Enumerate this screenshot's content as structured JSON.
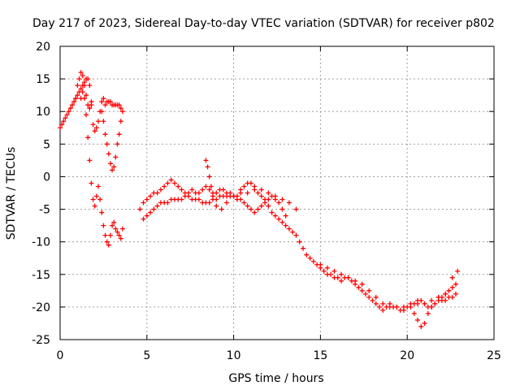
{
  "chart_data": {
    "type": "scatter",
    "title": "Day 217 of 2023, Sidereal Day-to-day VTEC variation (SDTVAR) for receiver p802",
    "xlabel": "GPS time / hours",
    "ylabel": "SDTVAR / TECUs",
    "xlim": [
      0,
      25
    ],
    "ylim": [
      -25,
      20
    ],
    "xticks": [
      0,
      5,
      10,
      15,
      20,
      25
    ],
    "yticks": [
      -25,
      -20,
      -15,
      -10,
      -5,
      0,
      5,
      10,
      15,
      20
    ],
    "grid": true,
    "marker": "+",
    "colors": {
      "series": "#ff0000",
      "grid": "#a0a0a0",
      "axis": "#000000"
    },
    "series": [
      {
        "name": "SDTVAR",
        "x": [
          0.0,
          0.1,
          0.2,
          0.3,
          0.4,
          0.5,
          0.6,
          0.7,
          0.8,
          0.9,
          1.0,
          1.1,
          1.2,
          1.3,
          1.4,
          1.5,
          1.6,
          1.7,
          1.8,
          1.9,
          2.0,
          2.1,
          2.2,
          2.3,
          2.4,
          2.5,
          2.6,
          2.7,
          2.8,
          2.9,
          3.0,
          3.1,
          3.2,
          3.3,
          3.4,
          3.5,
          1.2,
          1.3,
          1.4,
          1.5,
          1.6,
          1.7,
          1.8,
          1.9,
          2.0,
          2.1,
          2.2,
          2.3,
          2.4,
          2.5,
          2.6,
          2.7,
          2.8,
          2.9,
          3.0,
          3.1,
          3.2,
          3.3,
          3.4,
          3.5,
          3.6,
          0.9,
          1.0,
          1.1,
          1.2,
          1.3,
          1.4,
          1.5,
          1.6,
          1.7,
          1.8,
          2.4,
          2.5,
          2.6,
          2.7,
          2.8,
          2.9,
          3.0,
          3.1,
          3.2,
          3.3,
          3.4,
          3.5,
          3.6,
          4.6,
          4.8,
          5.0,
          5.2,
          5.4,
          5.6,
          5.8,
          6.0,
          6.2,
          6.4,
          6.6,
          6.8,
          7.0,
          7.2,
          7.4,
          7.6,
          7.8,
          8.0,
          8.2,
          8.4,
          8.6,
          8.8,
          9.0,
          9.2,
          9.4,
          9.6,
          9.8,
          10.0,
          10.2,
          10.4,
          10.6,
          10.8,
          11.0,
          11.2,
          11.4,
          11.6,
          11.8,
          12.0,
          12.2,
          12.4,
          12.6,
          12.8,
          13.0,
          13.2,
          13.4,
          13.6,
          4.8,
          5.0,
          5.2,
          5.4,
          5.6,
          5.8,
          6.0,
          6.2,
          6.4,
          6.6,
          6.8,
          7.0,
          7.2,
          7.4,
          7.6,
          7.8,
          8.0,
          8.2,
          8.4,
          8.6,
          8.8,
          9.0,
          9.2,
          9.4,
          9.6,
          9.8,
          10.0,
          10.2,
          10.4,
          10.6,
          10.8,
          11.0,
          11.2,
          11.4,
          11.6,
          11.8,
          12.0,
          12.2,
          12.4,
          12.6,
          12.8,
          13.0,
          8.4,
          8.5,
          8.6,
          8.7,
          8.8,
          9.0,
          9.3,
          9.6,
          10.0,
          10.4,
          10.8,
          11.2,
          11.6,
          12.0,
          12.4,
          12.8,
          13.2,
          13.6,
          13.8,
          14.0,
          14.2,
          14.4,
          14.6,
          14.8,
          15.0,
          15.2,
          15.4,
          15.6,
          15.8,
          16.0,
          16.2,
          16.4,
          16.6,
          16.8,
          17.0,
          17.2,
          17.4,
          17.6,
          17.8,
          18.0,
          18.2,
          18.4,
          18.6,
          18.8,
          19.0,
          19.2,
          19.4,
          19.6,
          19.8,
          20.0,
          20.2,
          20.4,
          20.6,
          20.8,
          21.0,
          21.2,
          21.4,
          21.6,
          21.8,
          22.0,
          22.2,
          22.4,
          22.6,
          22.8,
          15.0,
          15.4,
          15.8,
          16.2,
          16.6,
          17.0,
          17.4,
          17.8,
          18.2,
          18.6,
          19.0,
          19.4,
          19.8,
          20.2,
          20.6,
          21.0,
          21.4,
          21.8,
          22.2,
          22.6,
          22.9,
          20.4,
          20.6,
          20.8,
          21.0,
          21.2,
          21.4,
          21.6,
          21.8,
          22.0,
          22.2,
          22.4,
          22.6,
          22.8
        ],
        "y": [
          7.5,
          8.0,
          8.5,
          9.0,
          9.5,
          10.0,
          10.5,
          11.0,
          11.5,
          12.0,
          12.5,
          13.0,
          13.5,
          14.0,
          14.5,
          15.0,
          15.0,
          14.0,
          11.5,
          8.0,
          7.0,
          7.5,
          8.5,
          10.0,
          11.5,
          12.0,
          11.0,
          11.5,
          11.5,
          11.5,
          11.0,
          11.0,
          11.0,
          11.0,
          11.0,
          10.5,
          12.0,
          13.0,
          12.0,
          9.5,
          6.0,
          2.5,
          -1.0,
          -3.5,
          -4.5,
          -3.0,
          -1.5,
          -3.5,
          -5.5,
          -7.5,
          -9.0,
          -10.0,
          -10.5,
          -9.0,
          -7.5,
          -7.0,
          -8.0,
          -8.5,
          -9.0,
          -9.5,
          -8.0,
          12.0,
          14.0,
          15.0,
          16.0,
          15.5,
          14.0,
          12.5,
          11.0,
          10.5,
          11.0,
          10.0,
          8.5,
          6.5,
          5.0,
          3.5,
          2.0,
          1.0,
          1.5,
          3.0,
          5.0,
          6.5,
          8.5,
          10.0,
          -5.0,
          -4.0,
          -3.5,
          -3.0,
          -2.5,
          -2.5,
          -2.0,
          -1.5,
          -1.0,
          -0.5,
          -1.0,
          -1.5,
          -2.0,
          -2.5,
          -2.5,
          -2.0,
          -2.5,
          -2.5,
          -2.0,
          -1.5,
          -2.0,
          -2.5,
          -2.5,
          -2.0,
          -2.0,
          -2.5,
          -2.5,
          -3.0,
          -3.0,
          -2.0,
          -1.5,
          -1.0,
          -1.0,
          -1.5,
          -2.5,
          -3.0,
          -3.5,
          -4.5,
          -5.5,
          -6.0,
          -6.5,
          -7.0,
          -7.5,
          -8.0,
          -8.5,
          -9.0,
          -6.5,
          -6.0,
          -5.5,
          -5.0,
          -4.5,
          -4.0,
          -4.0,
          -4.0,
          -3.5,
          -3.5,
          -3.5,
          -3.5,
          -3.0,
          -3.0,
          -3.5,
          -3.5,
          -3.5,
          -4.0,
          -4.0,
          -4.0,
          -3.5,
          -3.5,
          -3.0,
          -3.0,
          -3.0,
          -3.0,
          -3.0,
          -3.5,
          -3.5,
          -4.0,
          -4.5,
          -5.0,
          -5.5,
          -5.0,
          -4.5,
          -4.0,
          -3.5,
          -3.0,
          -3.5,
          -4.0,
          -5.0,
          -6.0,
          2.5,
          1.5,
          0.0,
          -1.5,
          -3.0,
          -4.5,
          -5.0,
          -4.0,
          -3.0,
          -2.5,
          -2.5,
          -2.0,
          -2.0,
          -2.5,
          -3.0,
          -3.5,
          -4.0,
          -5.0,
          -10.0,
          -11.0,
          -12.0,
          -12.5,
          -13.0,
          -13.5,
          -14.0,
          -14.5,
          -15.0,
          -15.0,
          -15.5,
          -15.5,
          -16.0,
          -15.5,
          -15.5,
          -16.0,
          -16.5,
          -17.0,
          -17.5,
          -18.0,
          -18.5,
          -19.0,
          -19.5,
          -20.0,
          -20.5,
          -20.0,
          -19.5,
          -20.0,
          -20.0,
          -20.5,
          -20.5,
          -20.0,
          -19.5,
          -19.5,
          -19.0,
          -19.0,
          -19.5,
          -20.0,
          -20.0,
          -19.5,
          -19.0,
          -18.5,
          -18.0,
          -17.5,
          -17.0,
          -16.5,
          -13.5,
          -14.0,
          -14.5,
          -15.0,
          -15.5,
          -16.0,
          -16.5,
          -17.5,
          -18.5,
          -19.5,
          -20.0,
          -20.0,
          -20.0,
          -20.0,
          -19.5,
          -19.5,
          -19.0,
          -18.5,
          -18.0,
          -15.5,
          -14.5,
          -21.0,
          -22.0,
          -23.0,
          -22.5,
          -21.0,
          -20.0,
          -19.5,
          -18.5,
          -19.0,
          -19.0,
          -18.5,
          -18.5,
          -18.0
        ]
      }
    ]
  }
}
